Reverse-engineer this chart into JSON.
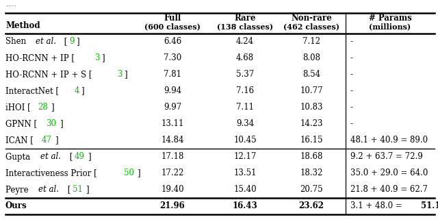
{
  "rows": [
    {
      "method": [
        [
          "Shen ",
          "n"
        ],
        [
          "et al.",
          "i"
        ],
        [
          " [",
          "n"
        ],
        [
          "9",
          "g"
        ],
        [
          "]",
          "n"
        ]
      ],
      "full": "6.46",
      "rare": "4.24",
      "nonrare": "7.12",
      "params": [
        [
          "- ",
          "n"
        ]
      ],
      "bold": false
    },
    {
      "method": [
        [
          "HO-RCNN + IP [",
          "n"
        ],
        [
          "3",
          "g"
        ],
        [
          "]",
          "n"
        ]
      ],
      "full": "7.30",
      "rare": "4.68",
      "nonrare": "8.08",
      "params": [
        [
          "- ",
          "n"
        ]
      ],
      "bold": false
    },
    {
      "method": [
        [
          "HO-RCNN + IP + S [",
          "n"
        ],
        [
          "3",
          "g"
        ],
        [
          "]",
          "n"
        ]
      ],
      "full": "7.81",
      "rare": "5.37",
      "nonrare": "8.54",
      "params": [
        [
          "- ",
          "n"
        ]
      ],
      "bold": false
    },
    {
      "method": [
        [
          "InteractNet [",
          "n"
        ],
        [
          "4",
          "g"
        ],
        [
          "]",
          "n"
        ]
      ],
      "full": "9.94",
      "rare": "7.16",
      "nonrare": "10.77",
      "params": [
        [
          "- ",
          "n"
        ]
      ],
      "bold": false
    },
    {
      "method": [
        [
          "iHOI [",
          "n"
        ],
        [
          "28",
          "g"
        ],
        [
          "]",
          "n"
        ]
      ],
      "full": "9.97",
      "rare": "7.11",
      "nonrare": "10.83",
      "params": [
        [
          "- ",
          "n"
        ]
      ],
      "bold": false
    },
    {
      "method": [
        [
          "GPNN [",
          "n"
        ],
        [
          "30",
          "g"
        ],
        [
          "]",
          "n"
        ]
      ],
      "full": "13.11",
      "rare": "9.34",
      "nonrare": "14.23",
      "params": [
        [
          "- ",
          "n"
        ]
      ],
      "bold": false
    },
    {
      "method": [
        [
          "ICAN [",
          "n"
        ],
        [
          "47",
          "g"
        ],
        [
          "]",
          "n"
        ]
      ],
      "full": "14.84",
      "rare": "10.45",
      "nonrare": "16.15",
      "params": [
        [
          "48.1 + 40.9 = 89.0",
          "n"
        ]
      ],
      "bold": false
    },
    {
      "method": [
        [
          "Gupta ",
          "n"
        ],
        [
          "et al.",
          "i"
        ],
        [
          " [",
          "n"
        ],
        [
          "49",
          "g"
        ],
        [
          "]",
          "n"
        ]
      ],
      "full": "17.18",
      "rare": "12.17",
      "nonrare": "18.68",
      "params": [
        [
          "9.2 + 63.7 = 72.9",
          "n"
        ]
      ],
      "bold": false
    },
    {
      "method": [
        [
          "Interactiveness Prior [",
          "n"
        ],
        [
          "50",
          "g"
        ],
        [
          "]",
          "n"
        ]
      ],
      "full": "17.22",
      "rare": "13.51",
      "nonrare": "18.32",
      "params": [
        [
          "35.0 + 29.0 = 64.0",
          "n"
        ]
      ],
      "bold": false
    },
    {
      "method": [
        [
          "Peyre ",
          "n"
        ],
        [
          "et al.",
          "i"
        ],
        [
          " [",
          "n"
        ],
        [
          "51",
          "g"
        ],
        [
          "]",
          "n"
        ]
      ],
      "full": "19.40",
      "rare": "15.40",
      "nonrare": "20.75",
      "params": [
        [
          "21.8 + 40.9 = 62.7",
          "n"
        ]
      ],
      "bold": false
    },
    {
      "method": [
        [
          "Ours",
          "n"
        ]
      ],
      "full": "21.96",
      "rare": "16.43",
      "nonrare": "23.62",
      "params": [
        [
          "3.1 + 48.0 = ",
          "n"
        ],
        [
          "51.1",
          "b"
        ]
      ],
      "bold": true
    }
  ],
  "sep_after_rows": [
    6,
    9
  ],
  "green": "#00bb00",
  "black": "#000000",
  "bg": "#ffffff"
}
